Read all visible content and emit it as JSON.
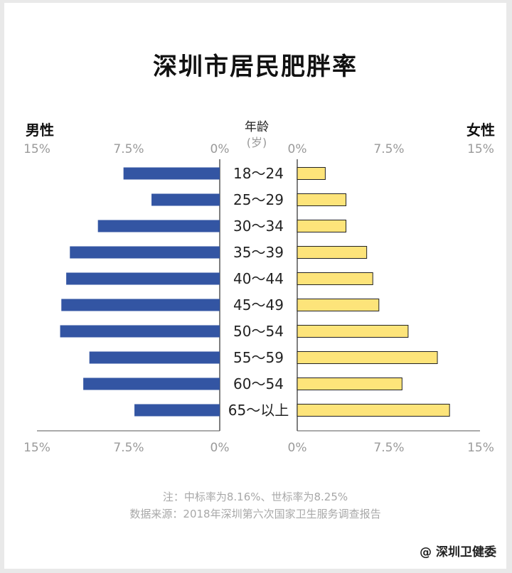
{
  "title": "深圳市居民肥胖率",
  "left_label": "男性",
  "right_label": "女性",
  "center_label": "年龄",
  "center_unit": "(岁)",
  "ticks": [
    "15%",
    "7.5%",
    "0%"
  ],
  "ticks_right": [
    "0%",
    "7.5%",
    "15%"
  ],
  "note_line1": "注：中标率为8.16%、世标率为8.25%",
  "note_line2": "数据来源：2018年深圳第六次国家卫生服务调查报告",
  "watermark": "@ 深圳卫健委",
  "colors": {
    "male": "#3355a3",
    "female": "#fde47a",
    "outline": "#222222",
    "axis": "#555555"
  },
  "chart_data": {
    "type": "bar",
    "title": "深圳市居民肥胖率",
    "categories": [
      "18～24",
      "25～29",
      "30～34",
      "35～39",
      "40～44",
      "45～49",
      "50～54",
      "55～59",
      "60～54",
      "65～以上"
    ],
    "series": [
      {
        "name": "男性",
        "values": [
          7.9,
          5.6,
          10.0,
          12.3,
          12.6,
          13.0,
          13.1,
          10.7,
          11.2,
          7.0
        ]
      },
      {
        "name": "女性",
        "values": [
          2.3,
          4.0,
          4.0,
          5.7,
          6.2,
          6.7,
          9.1,
          11.5,
          8.6,
          12.5
        ]
      }
    ],
    "xlim": [
      0,
      15
    ],
    "x_ticks": [
      "0%",
      "7.5%",
      "15%"
    ],
    "orientation": "horizontal-butterfly",
    "grid": false
  }
}
